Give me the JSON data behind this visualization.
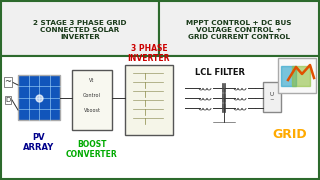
{
  "bg_color": "#f0f0f0",
  "border_color": "#2d6a2d",
  "title_left": "2 STAGE 3 PHASE GRID\nCONNECTED SOLAR\nINVERTER",
  "title_right": "MPPT CONTROL + DC BUS\nVOLTAGE CONTROL +\nGRID CURRENT CONTROL",
  "title_color": "#1a3a1a",
  "label_pv": "PV\nARRAY",
  "label_boost": "BOOST\nCONVERTER",
  "label_inverter": "3 PHASE\nINVERTER",
  "label_lcl": "LCL FILTER",
  "label_grid": "GRID",
  "pv_color": "#0055aa",
  "boost_label_color": "#00aa00",
  "inverter_label_color": "#cc0000",
  "lcl_label_color": "#111111",
  "grid_label_color": "#ffaa00",
  "pv_label_color": "#00008b",
  "matlab_colors": [
    "#23a0c8",
    "#a0c823",
    "#e05000"
  ],
  "diagram_bg": "#ffffff",
  "component_border": "#555555",
  "wire_color": "#333333"
}
